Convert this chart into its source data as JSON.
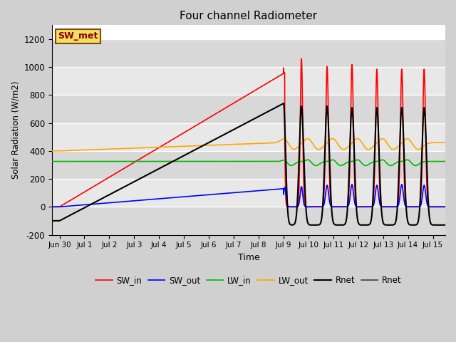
{
  "title": "Four channel Radiometer",
  "xlabel": "Time",
  "ylabel": "Solar Radiation (W/m2)",
  "annotation": "SW_met",
  "ylim": [
    -200,
    1300
  ],
  "xlim": [
    -0.3,
    15.5
  ],
  "xtick_positions": [
    0,
    1,
    2,
    3,
    4,
    5,
    6,
    7,
    8,
    9,
    10,
    11,
    12,
    13,
    14,
    15
  ],
  "xtick_labels": [
    "Jun 30",
    "Jul 1",
    "Jul 2",
    "Jul 3",
    "Jul 4",
    "Jul 5",
    "Jul 6",
    "Jul 7",
    "Jul 8",
    "Jul 9",
    "Jul 10",
    "Jul 11",
    "Jul 12",
    "Jul 13",
    "Jul 14",
    "Jul 15"
  ],
  "ytick_values": [
    -200,
    0,
    200,
    400,
    600,
    800,
    1000,
    1200
  ],
  "colors": {
    "SW_in": "#ff0000",
    "SW_out": "#0000ff",
    "LW_in": "#00bb00",
    "LW_out": "#ffa500",
    "Rnet": "#000000",
    "Rnet2": "#404040"
  },
  "band_colors": [
    "#d8d8d8",
    "#e8e8e8"
  ],
  "fig_bg": "#d0d0d0"
}
